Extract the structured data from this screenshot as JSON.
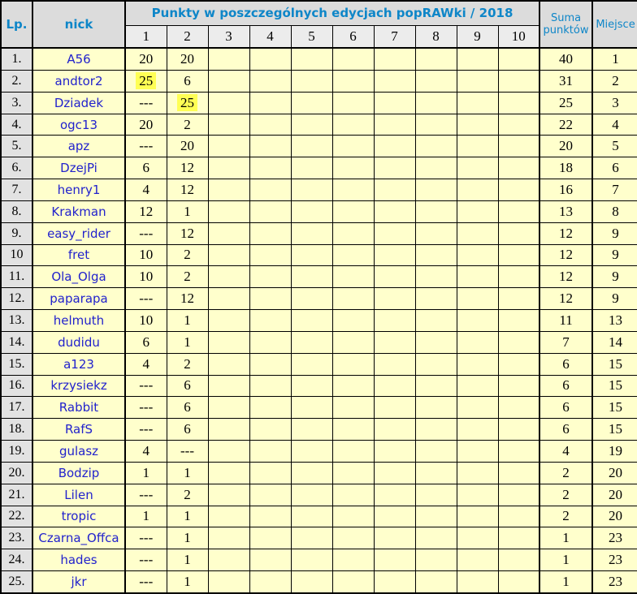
{
  "table": {
    "header": {
      "lp": "Lp.",
      "nick": "nick",
      "points_title": "Punkty w poszczególnych edycjach popRAWki / 2018",
      "edition_columns": [
        "1",
        "2",
        "3",
        "4",
        "5",
        "6",
        "7",
        "8",
        "9",
        "10"
      ],
      "suma": "Suma punktów",
      "miejsce": "Miejsce"
    },
    "colors": {
      "header_bg": "#dcdcdc",
      "subheader_bg": "#ececec",
      "lp_column_bg": "#e2e2e2",
      "cell_bg": "#ffffcc",
      "highlight_bg": "#ffff55",
      "header_text": "#0e86c8",
      "nick_text": "#2222cc",
      "value_text": "#000000",
      "border": "#000000"
    },
    "rows": [
      {
        "lp": "1.",
        "nick": "A56",
        "points": [
          "20",
          "20",
          "",
          "",
          "",
          "",
          "",
          "",
          "",
          ""
        ],
        "suma": "40",
        "miejsce": "1"
      },
      {
        "lp": "2.",
        "nick": "andtor2",
        "points": [
          "25",
          "6",
          "",
          "",
          "",
          "",
          "",
          "",
          "",
          ""
        ],
        "suma": "31",
        "miejsce": "2",
        "highlight": [
          1
        ]
      },
      {
        "lp": "3.",
        "nick": "Dziadek",
        "points": [
          "---",
          "25",
          "",
          "",
          "",
          "",
          "",
          "",
          "",
          ""
        ],
        "suma": "25",
        "miejsce": "3",
        "highlight": [
          2
        ]
      },
      {
        "lp": "4.",
        "nick": "ogc13",
        "points": [
          "20",
          "2",
          "",
          "",
          "",
          "",
          "",
          "",
          "",
          ""
        ],
        "suma": "22",
        "miejsce": "4"
      },
      {
        "lp": "5.",
        "nick": "apz",
        "points": [
          "---",
          "20",
          "",
          "",
          "",
          "",
          "",
          "",
          "",
          ""
        ],
        "suma": "20",
        "miejsce": "5"
      },
      {
        "lp": "6.",
        "nick": "DzejPi",
        "points": [
          "6",
          "12",
          "",
          "",
          "",
          "",
          "",
          "",
          "",
          ""
        ],
        "suma": "18",
        "miejsce": "6"
      },
      {
        "lp": "7.",
        "nick": "henry1",
        "points": [
          "4",
          "12",
          "",
          "",
          "",
          "",
          "",
          "",
          "",
          ""
        ],
        "suma": "16",
        "miejsce": "7"
      },
      {
        "lp": "8.",
        "nick": "Krakman",
        "points": [
          "12",
          "1",
          "",
          "",
          "",
          "",
          "",
          "",
          "",
          ""
        ],
        "suma": "13",
        "miejsce": "8"
      },
      {
        "lp": "9.",
        "nick": "easy_rider",
        "points": [
          "---",
          "12",
          "",
          "",
          "",
          "",
          "",
          "",
          "",
          ""
        ],
        "suma": "12",
        "miejsce": "9"
      },
      {
        "lp": "10",
        "nick": "fret",
        "points": [
          "10",
          "2",
          "",
          "",
          "",
          "",
          "",
          "",
          "",
          ""
        ],
        "suma": "12",
        "miejsce": "9"
      },
      {
        "lp": "11.",
        "nick": "Ola_Olga",
        "points": [
          "10",
          "2",
          "",
          "",
          "",
          "",
          "",
          "",
          "",
          ""
        ],
        "suma": "12",
        "miejsce": "9"
      },
      {
        "lp": "12.",
        "nick": "paparapa",
        "points": [
          "---",
          "12",
          "",
          "",
          "",
          "",
          "",
          "",
          "",
          ""
        ],
        "suma": "12",
        "miejsce": "9"
      },
      {
        "lp": "13.",
        "nick": "helmuth",
        "points": [
          "10",
          "1",
          "",
          "",
          "",
          "",
          "",
          "",
          "",
          ""
        ],
        "suma": "11",
        "miejsce": "13"
      },
      {
        "lp": "14.",
        "nick": "dudidu",
        "points": [
          "6",
          "1",
          "",
          "",
          "",
          "",
          "",
          "",
          "",
          ""
        ],
        "suma": "7",
        "miejsce": "14"
      },
      {
        "lp": "15.",
        "nick": "a123",
        "points": [
          "4",
          "2",
          "",
          "",
          "",
          "",
          "",
          "",
          "",
          ""
        ],
        "suma": "6",
        "miejsce": "15"
      },
      {
        "lp": "16.",
        "nick": "krzysiekz",
        "points": [
          "---",
          "6",
          "",
          "",
          "",
          "",
          "",
          "",
          "",
          ""
        ],
        "suma": "6",
        "miejsce": "15"
      },
      {
        "lp": "17.",
        "nick": "Rabbit",
        "points": [
          "---",
          "6",
          "",
          "",
          "",
          "",
          "",
          "",
          "",
          ""
        ],
        "suma": "6",
        "miejsce": "15"
      },
      {
        "lp": "18.",
        "nick": "RafS",
        "points": [
          "---",
          "6",
          "",
          "",
          "",
          "",
          "",
          "",
          "",
          ""
        ],
        "suma": "6",
        "miejsce": "15"
      },
      {
        "lp": "19.",
        "nick": "gulasz",
        "points": [
          "4",
          "---",
          "",
          "",
          "",
          "",
          "",
          "",
          "",
          ""
        ],
        "suma": "4",
        "miejsce": "19"
      },
      {
        "lp": "20.",
        "nick": "Bodzip",
        "points": [
          "1",
          "1",
          "",
          "",
          "",
          "",
          "",
          "",
          "",
          ""
        ],
        "suma": "2",
        "miejsce": "20"
      },
      {
        "lp": "21.",
        "nick": "Lilen",
        "points": [
          "---",
          "2",
          "",
          "",
          "",
          "",
          "",
          "",
          "",
          ""
        ],
        "suma": "2",
        "miejsce": "20"
      },
      {
        "lp": "22.",
        "nick": "tropic",
        "points": [
          "1",
          "1",
          "",
          "",
          "",
          "",
          "",
          "",
          "",
          ""
        ],
        "suma": "2",
        "miejsce": "20"
      },
      {
        "lp": "23.",
        "nick": "Czarna_Offca",
        "points": [
          "---",
          "1",
          "",
          "",
          "",
          "",
          "",
          "",
          "",
          ""
        ],
        "suma": "1",
        "miejsce": "23"
      },
      {
        "lp": "24.",
        "nick": "hades",
        "points": [
          "---",
          "1",
          "",
          "",
          "",
          "",
          "",
          "",
          "",
          ""
        ],
        "suma": "1",
        "miejsce": "23"
      },
      {
        "lp": "25.",
        "nick": "jkr",
        "points": [
          "---",
          "1",
          "",
          "",
          "",
          "",
          "",
          "",
          "",
          ""
        ],
        "suma": "1",
        "miejsce": "23"
      }
    ]
  }
}
